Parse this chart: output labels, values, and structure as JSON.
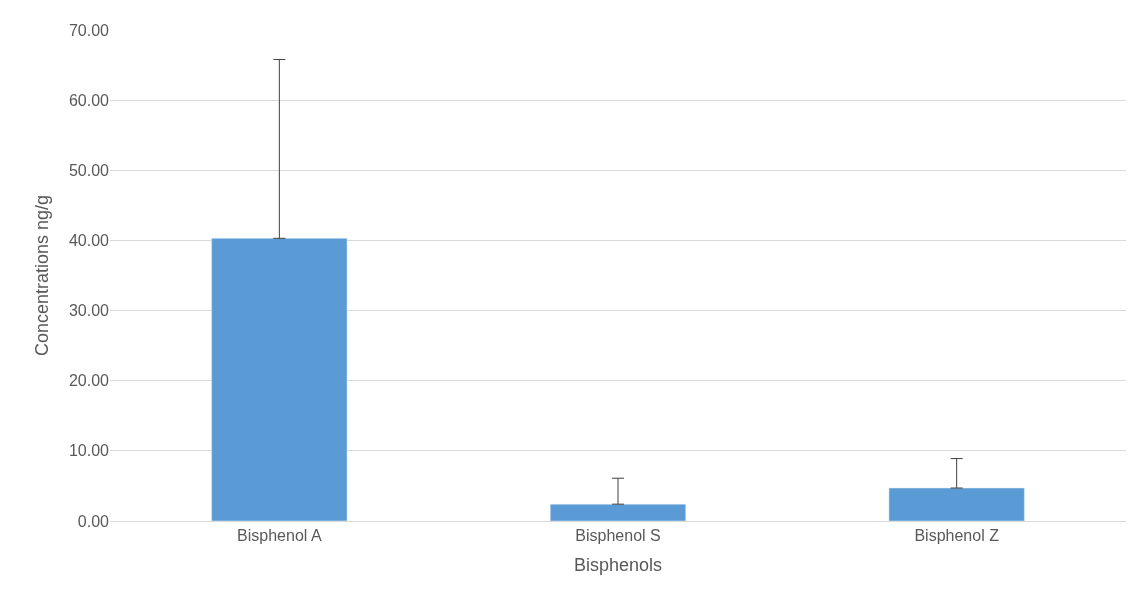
{
  "chart_data": {
    "type": "bar",
    "xlabel": "Bisphenols",
    "ylabel": "Concentrations ng/g",
    "categories": [
      "Bisphenol A",
      "Bisphenol S",
      "Bisphenol Z"
    ],
    "values": [
      40.3,
      2.4,
      4.7
    ],
    "errors": [
      [
        40.3,
        65.8
      ],
      [
        2.4,
        6.1
      ],
      [
        4.7,
        8.9
      ]
    ],
    "color": "#5b9bd5",
    "ylim": [
      0,
      70
    ],
    "yticks": [
      {
        "value": 0,
        "label": "0.00"
      },
      {
        "value": 10,
        "label": "10.00"
      },
      {
        "value": 20,
        "label": "20.00"
      },
      {
        "value": 30,
        "label": "30.00"
      },
      {
        "value": 40,
        "label": "40.00"
      },
      {
        "value": 50,
        "label": "50.00"
      },
      {
        "value": 60,
        "label": "60.00"
      },
      {
        "value": 70,
        "label": "70.00"
      }
    ],
    "grid": "y"
  }
}
